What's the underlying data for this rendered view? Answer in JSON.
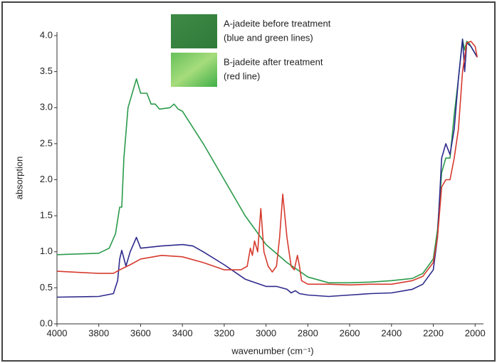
{
  "chart_data": {
    "type": "line",
    "xlabel": "wavenumber (cm⁻¹)",
    "ylabel": "absorption",
    "xlim": [
      4000,
      1960
    ],
    "ylim": [
      0,
      4.0
    ],
    "xticks": [
      4000,
      3800,
      3600,
      3400,
      3200,
      3000,
      2800,
      2600,
      2400,
      2200,
      2000
    ],
    "yticks": [
      {
        "value": 0,
        "label": "0.0"
      },
      {
        "value": 0.5,
        "label": "0.5"
      },
      {
        "value": 1,
        "label": "1.0"
      },
      {
        "value": 1.5,
        "label": "1.5"
      },
      {
        "value": 2,
        "label": "2.0"
      },
      {
        "value": 2.5,
        "label": "2.5"
      },
      {
        "value": 3,
        "label": "3.0"
      },
      {
        "value": 3.5,
        "label": "3.5"
      },
      {
        "value": 4,
        "label": "4.0"
      }
    ],
    "x_reversed": true,
    "legend": [
      {
        "lines": [
          "A-jadeite before treatment",
          "(blue and green lines)"
        ]
      },
      {
        "lines": [
          "B-jadeite after treatment",
          "(red line)"
        ]
      }
    ],
    "series": [
      {
        "color": "#2a9a4a",
        "x": [
          4000,
          3800,
          3750,
          3720,
          3700,
          3690,
          3680,
          3660,
          3640,
          3620,
          3600,
          3570,
          3550,
          3530,
          3510,
          3460,
          3440,
          3420,
          3400,
          3300,
          3200,
          3100,
          3000,
          2900,
          2800,
          2700,
          2600,
          2500,
          2400,
          2300,
          2250,
          2200,
          2180,
          2160,
          2140,
          2120,
          2100,
          2080,
          2060,
          2050,
          2040,
          2030,
          2010,
          1990
        ],
        "values": [
          0.96,
          0.98,
          1.05,
          1.25,
          1.62,
          1.62,
          2.3,
          3.0,
          3.2,
          3.4,
          3.2,
          3.2,
          3.05,
          3.05,
          2.98,
          3.0,
          3.05,
          2.98,
          2.95,
          2.5,
          2.0,
          1.5,
          1.1,
          0.85,
          0.65,
          0.57,
          0.57,
          0.58,
          0.6,
          0.63,
          0.7,
          0.9,
          1.3,
          2.1,
          2.3,
          2.3,
          2.9,
          3.4,
          3.95,
          3.8,
          3.92,
          3.9,
          3.8,
          3.7
        ]
      },
      {
        "color": "#2e2a8c",
        "x": [
          4000,
          3800,
          3730,
          3710,
          3700,
          3690,
          3670,
          3650,
          3620,
          3600,
          3500,
          3400,
          3350,
          3300,
          3200,
          3100,
          3000,
          2950,
          2900,
          2880,
          2860,
          2840,
          2800,
          2700,
          2600,
          2500,
          2400,
          2300,
          2250,
          2200,
          2180,
          2160,
          2140,
          2120,
          2100,
          2080,
          2060,
          2050,
          2040,
          2020,
          2000,
          1990
        ],
        "values": [
          0.37,
          0.38,
          0.42,
          0.6,
          0.9,
          1.02,
          0.8,
          1.0,
          1.2,
          1.05,
          1.08,
          1.1,
          1.08,
          1.0,
          0.82,
          0.62,
          0.52,
          0.52,
          0.48,
          0.43,
          0.46,
          0.42,
          0.4,
          0.38,
          0.4,
          0.42,
          0.43,
          0.48,
          0.55,
          0.75,
          1.2,
          2.3,
          2.5,
          2.35,
          2.7,
          3.4,
          3.95,
          3.5,
          3.9,
          3.85,
          3.75,
          3.7
        ]
      },
      {
        "color": "#d63a2e",
        "x": [
          4000,
          3800,
          3730,
          3700,
          3650,
          3600,
          3500,
          3400,
          3300,
          3200,
          3120,
          3090,
          3075,
          3065,
          3055,
          3040,
          3025,
          3010,
          2990,
          2970,
          2950,
          2935,
          2920,
          2900,
          2880,
          2865,
          2850,
          2840,
          2830,
          2800,
          2700,
          2600,
          2500,
          2400,
          2300,
          2250,
          2200,
          2180,
          2160,
          2140,
          2120,
          2100,
          2080,
          2060,
          2040,
          2020,
          2000,
          1990
        ],
        "values": [
          0.73,
          0.7,
          0.7,
          0.75,
          0.82,
          0.9,
          0.95,
          0.93,
          0.85,
          0.75,
          0.75,
          0.8,
          1.05,
          0.95,
          1.15,
          1.0,
          1.6,
          1.0,
          0.8,
          0.72,
          0.8,
          1.2,
          1.8,
          1.2,
          0.8,
          0.75,
          0.95,
          0.8,
          0.6,
          0.55,
          0.55,
          0.54,
          0.55,
          0.55,
          0.6,
          0.66,
          0.85,
          1.2,
          1.9,
          2.0,
          2.0,
          2.3,
          2.7,
          3.5,
          3.9,
          3.92,
          3.85,
          3.7
        ]
      }
    ]
  }
}
